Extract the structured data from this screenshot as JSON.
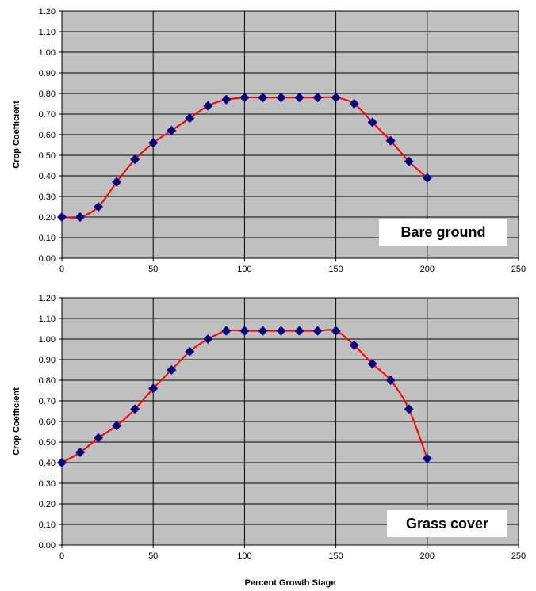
{
  "chart_data": [
    {
      "type": "line",
      "annotation": "Bare ground",
      "ylabel": "Crop Coefficient",
      "xlabel": "",
      "xlim": [
        0,
        250
      ],
      "ylim": [
        0,
        1.2
      ],
      "xticks": [
        "0",
        "50",
        "100",
        "150",
        "200",
        "250"
      ],
      "yticks": [
        "0.00",
        "0.10",
        "0.20",
        "0.30",
        "0.40",
        "0.50",
        "0.60",
        "0.70",
        "0.80",
        "0.90",
        "1.00",
        "1.10",
        "1.20"
      ],
      "grid": true,
      "line_color": "#ff0000",
      "marker_color": "#000080",
      "plot_background": "#c0c0c0",
      "series": [
        {
          "x": [
            0,
            10,
            20,
            30,
            40,
            50,
            60,
            70,
            80,
            90,
            100,
            110,
            120,
            130,
            140,
            150,
            160,
            170,
            180,
            190,
            200
          ],
          "values": [
            0.2,
            0.2,
            0.25,
            0.37,
            0.48,
            0.56,
            0.62,
            0.68,
            0.74,
            0.77,
            0.78,
            0.78,
            0.78,
            0.78,
            0.78,
            0.78,
            0.75,
            0.66,
            0.57,
            0.47,
            0.39
          ]
        }
      ]
    },
    {
      "type": "line",
      "annotation": "Grass cover",
      "ylabel": "Crop Coefficient",
      "xlabel": "Percent Growth Stage",
      "xlim": [
        0,
        250
      ],
      "ylim": [
        0,
        1.2
      ],
      "xticks": [
        "0",
        "50",
        "100",
        "150",
        "200",
        "250"
      ],
      "yticks": [
        "0.00",
        "0.10",
        "0.20",
        "0.30",
        "0.40",
        "0.50",
        "0.60",
        "0.70",
        "0.80",
        "0.90",
        "1.00",
        "1.10",
        "1.20"
      ],
      "grid": true,
      "line_color": "#ff0000",
      "marker_color": "#000080",
      "plot_background": "#c0c0c0",
      "series": [
        {
          "x": [
            0,
            10,
            20,
            30,
            40,
            50,
            60,
            70,
            80,
            90,
            100,
            110,
            120,
            130,
            140,
            150,
            160,
            170,
            180,
            190,
            200
          ],
          "values": [
            0.4,
            0.45,
            0.52,
            0.58,
            0.66,
            0.76,
            0.85,
            0.94,
            1.0,
            1.04,
            1.04,
            1.04,
            1.04,
            1.04,
            1.04,
            1.04,
            0.97,
            0.88,
            0.8,
            0.66,
            0.42
          ]
        }
      ]
    }
  ]
}
